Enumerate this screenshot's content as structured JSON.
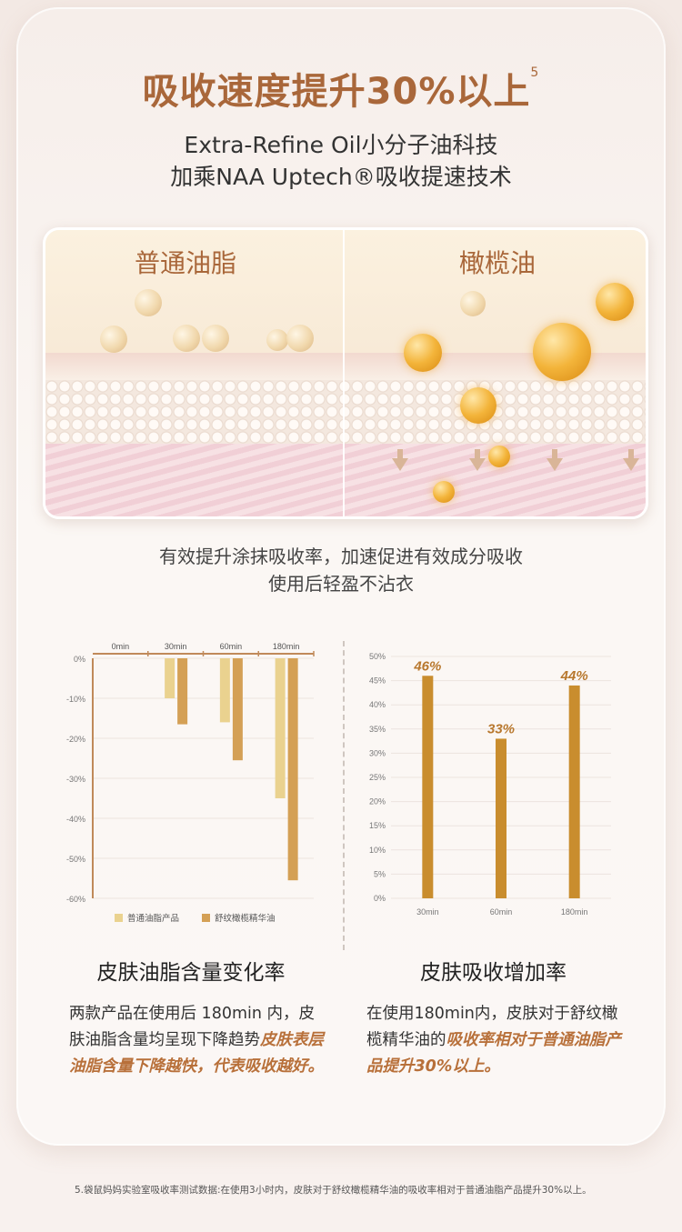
{
  "header": {
    "title": "吸收速度提升30%以上",
    "title_footnote_ref": "5",
    "subtitle_line1": "Extra-Refine Oil小分子油科技",
    "subtitle_line2": "加乘NAA Uptech®吸收提速技术"
  },
  "illustration": {
    "left_label": "普通油脂",
    "right_label": "橄榄油"
  },
  "description": {
    "line1": "有效提升涂抹吸收率，加速促进有效成分吸收",
    "line2": "使用后轻盈不沾衣"
  },
  "colors": {
    "accent": "#a9673a",
    "pale_bar": "#ead28f",
    "gold_bar": "#d4a055",
    "bar_gold_right": "#c98d2e"
  },
  "chart_data": [
    {
      "type": "bar",
      "title": "皮肤油脂含量变化率",
      "categories": [
        "0min",
        "30min",
        "60min",
        "180min"
      ],
      "y_ticks": [
        "0%",
        "-10%",
        "-20%",
        "-30%",
        "-40%",
        "-50%",
        "-60%"
      ],
      "ylim": [
        -60,
        0
      ],
      "series": [
        {
          "name": "普通油脂产品",
          "values": [
            0,
            -10,
            -16,
            -35
          ]
        },
        {
          "name": "舒纹橄榄精华油",
          "values": [
            0,
            -16.5,
            -25.5,
            -55.5
          ]
        }
      ],
      "legend": "bottom"
    },
    {
      "type": "bar",
      "title": "皮肤吸收增加率",
      "categories": [
        "30min",
        "60min",
        "180min"
      ],
      "values": [
        46,
        33,
        44
      ],
      "value_labels": [
        "46%",
        "33%",
        "44%"
      ],
      "y_ticks": [
        "0%",
        "5%",
        "10%",
        "15%",
        "20%",
        "25%",
        "30%",
        "35%",
        "40%",
        "45%",
        "50%"
      ],
      "ylim": [
        0,
        50
      ]
    }
  ],
  "left_text": {
    "plain": "两款产品在使用后 180min 内，皮肤油脂含量均呈现下降趋势",
    "highlight": "皮肤表层油脂含量下降越快，代表吸收越好。"
  },
  "right_text": {
    "plain": "在使用180min内，皮肤对于舒纹橄榄精华油的",
    "highlight": "吸收率相对于普通油脂产品提升30%以上。"
  },
  "footnote": "5.袋鼠妈妈实验室吸收率测试数据:在使用3小时内，皮肤对于舒纹橄榄精华油的吸收率相对于普通油脂产品提升30%以上。"
}
